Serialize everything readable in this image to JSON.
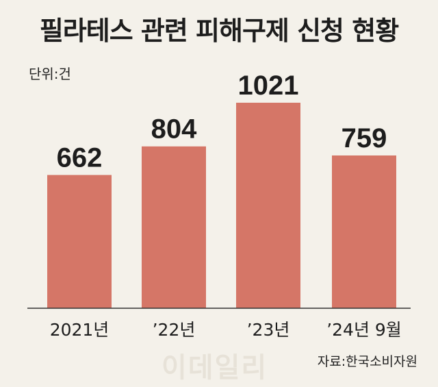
{
  "header": {
    "title": "필라테스 관련 피해구제 신청 현황",
    "unit": "단위:건"
  },
  "footer": {
    "source": "자료:한국소비자원",
    "watermark": "이데일리"
  },
  "colors": {
    "bar": "#d57667",
    "background": "#f4f1ea",
    "axis": "#333333",
    "text": "#1d1d1d"
  },
  "chart_data": {
    "type": "bar",
    "title": "필라테스 관련 피해구제 신청 현황",
    "xlabel": "",
    "ylabel": "",
    "unit": "단위:건",
    "categories": [
      "2021년",
      "’22년",
      "’23년",
      "’24년 9월"
    ],
    "values": [
      662,
      804,
      1021,
      759
    ],
    "ylim": [
      0,
      1140
    ],
    "grid": false,
    "legend": "none"
  }
}
